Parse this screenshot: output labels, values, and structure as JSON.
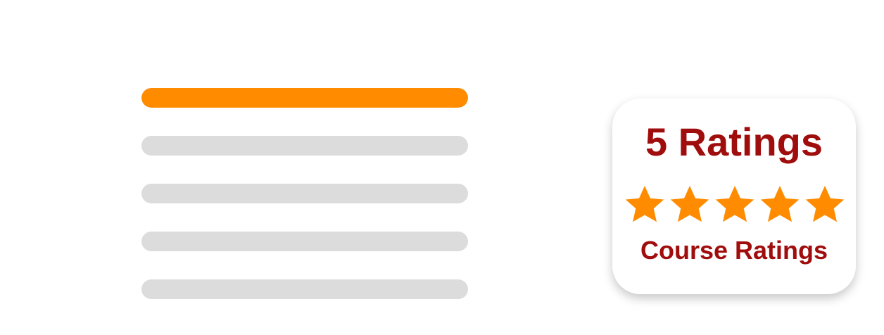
{
  "distribution": {
    "rows": [
      {
        "fill": 1.0
      },
      {
        "fill": 0.0
      },
      {
        "fill": 0.0
      },
      {
        "fill": 0.0
      },
      {
        "fill": 0.0
      }
    ]
  },
  "summary_card": {
    "count_text": "5 Ratings",
    "stars": 5,
    "stars_icon": "star-icon",
    "label": "Course Ratings"
  },
  "colors": {
    "accent": "#ff8c00",
    "track": "#dcdcdc",
    "text_red": "#a00d0d"
  }
}
